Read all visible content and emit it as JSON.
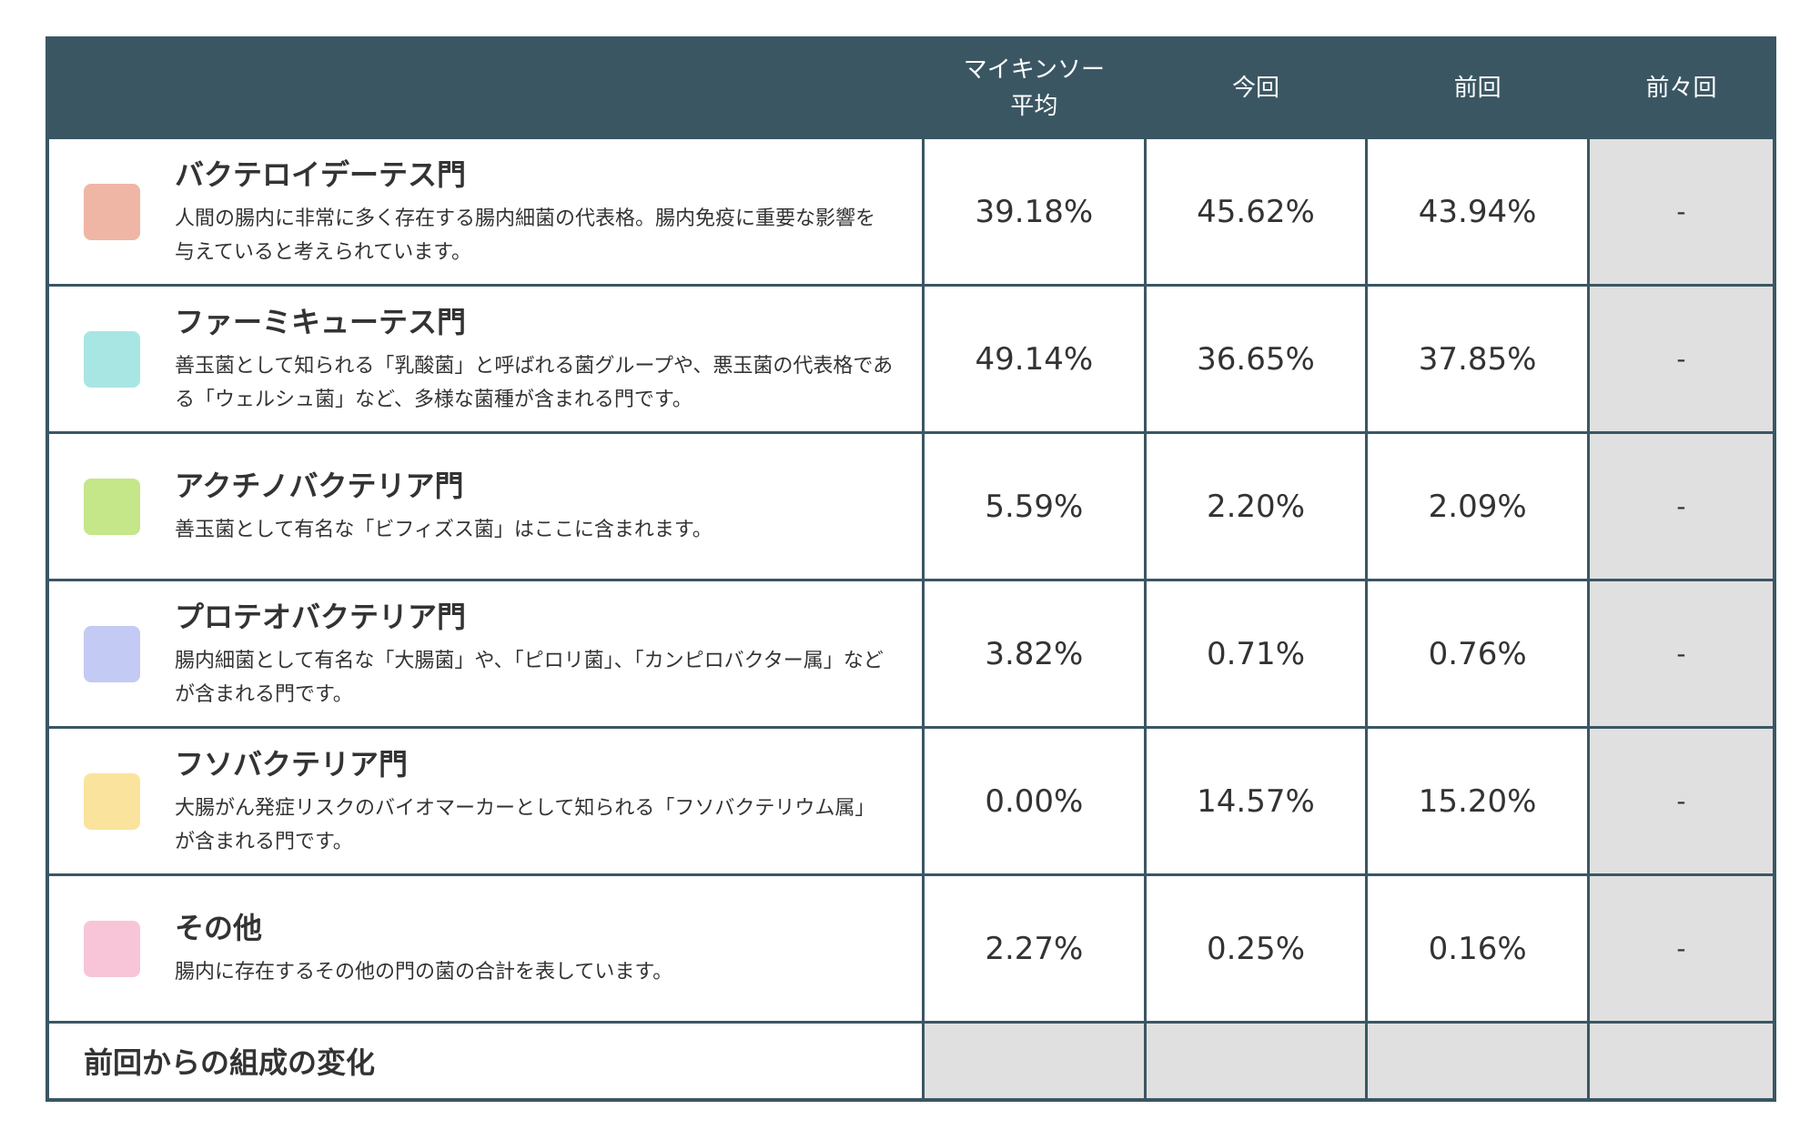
{
  "header": {
    "col_average_line1": "マイキンソー",
    "col_average_line2": "平均",
    "col_current": "今回",
    "col_previous": "前回",
    "col_before_previous": "前々回"
  },
  "colors": {
    "header_bg": "#3b5663",
    "swatch_bacteroidetes": "#f0b6a5",
    "swatch_firmicutes": "#a8e6e4",
    "swatch_actinobacteria": "#c5e689",
    "swatch_proteobacteria": "#c3cbf4",
    "swatch_fusobacteria": "#fae39c",
    "swatch_other": "#f7c5d7"
  },
  "rows": [
    {
      "name": "バクテロイデーテス門",
      "desc": "人間の腸内に非常に多く存在する腸内細菌の代表格。腸内免疫に重要な影響を与えていると考えられています。",
      "average": "39.18%",
      "current": "45.62%",
      "previous": "43.94%",
      "before_previous": "-"
    },
    {
      "name": "ファーミキューテス門",
      "desc": "善玉菌として知られる「乳酸菌」と呼ばれる菌グループや、悪玉菌の代表格である「ウェルシュ菌」など、多様な菌種が含まれる門です。",
      "average": "49.14%",
      "current": "36.65%",
      "previous": "37.85%",
      "before_previous": "-"
    },
    {
      "name": "アクチノバクテリア門",
      "desc": "善玉菌として有名な「ビフィズス菌」はここに含まれます。",
      "average": "5.59%",
      "current": "2.20%",
      "previous": "2.09%",
      "before_previous": "-"
    },
    {
      "name": "プロテオバクテリア門",
      "desc": "腸内細菌として有名な「大腸菌」や、「ピロリ菌」、「カンピロバクター属」などが含まれる門です。",
      "average": "3.82%",
      "current": "0.71%",
      "previous": "0.76%",
      "before_previous": "-"
    },
    {
      "name": "フソバクテリア門",
      "desc": "大腸がん発症リスクのバイオマーカーとして知られる「フソバクテリウム属」が含まれる門です。",
      "average": "0.00%",
      "current": "14.57%",
      "previous": "15.20%",
      "before_previous": "-"
    },
    {
      "name": "その他",
      "desc": "腸内に存在するその他の門の菌の合計を表しています。",
      "average": "2.27%",
      "current": "0.25%",
      "previous": "0.16%",
      "before_previous": "-"
    }
  ],
  "footer": {
    "label": "前回からの組成の変化"
  }
}
